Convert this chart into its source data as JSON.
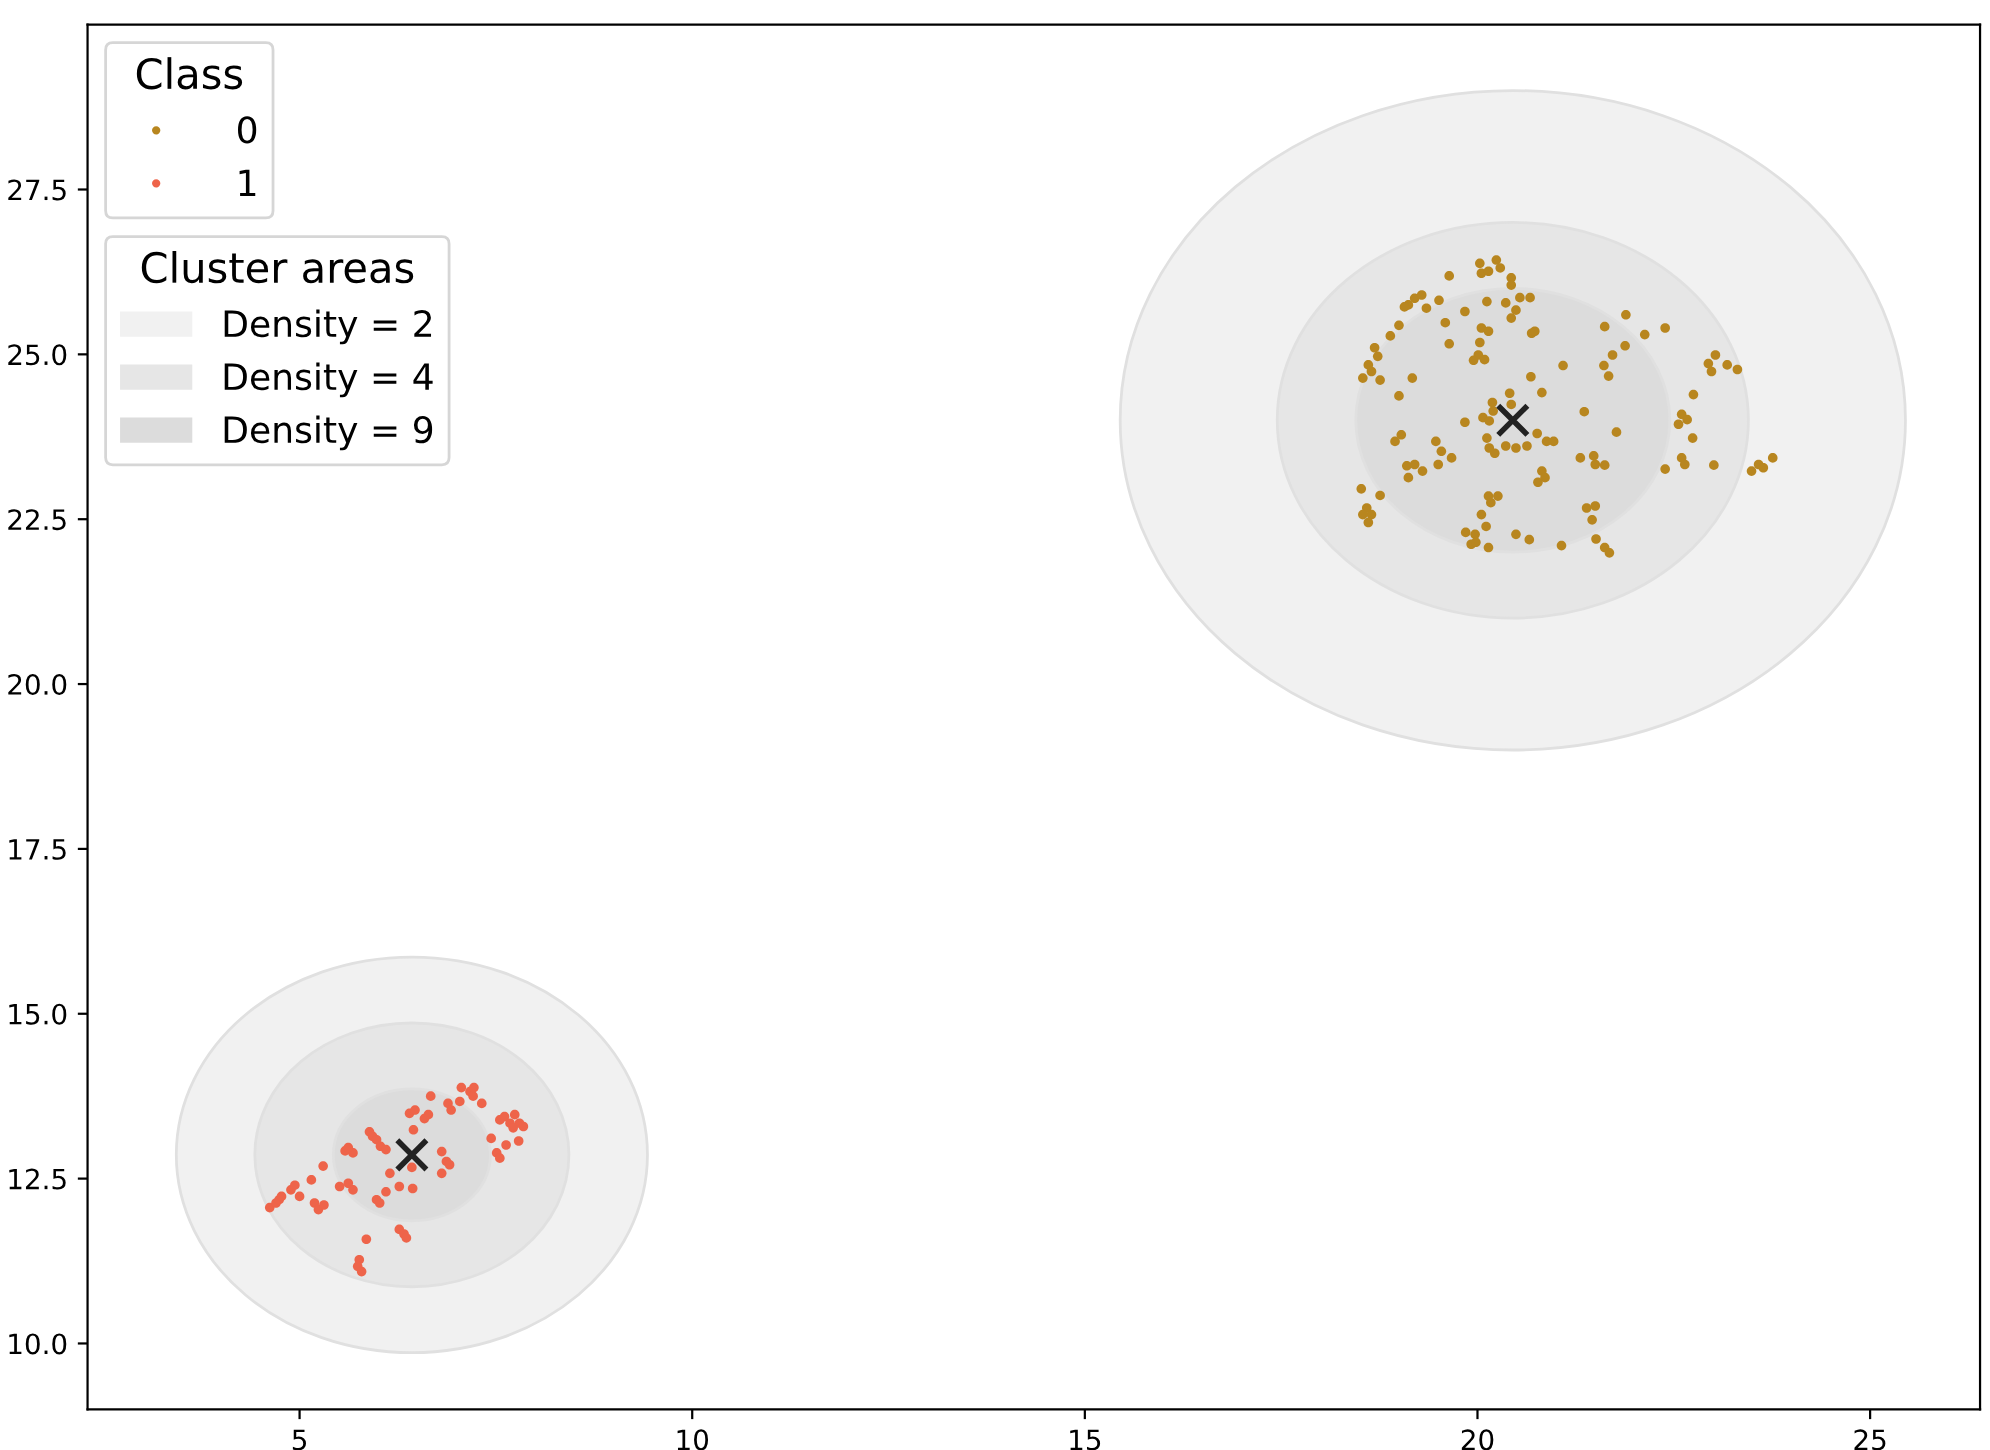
{
  "chart_data": {
    "type": "scatter",
    "legend_title": "Class",
    "annotations": [
      "Cluster areas",
      "Density = 2",
      "Density = 4",
      "Density = 9"
    ],
    "legend": "top left",
    "grid": false,
    "marker": "circle",
    "xlim": [
      2.3,
      26.4
    ],
    "ylim": [
      9.0,
      30.0
    ],
    "xticks": [
      5,
      10,
      15,
      20,
      25
    ],
    "yticks": [
      {
        "value": 10,
        "label": "10.0"
      },
      {
        "value": 12.5,
        "label": "12.5"
      },
      {
        "value": 15,
        "label": "15.0"
      },
      {
        "value": 17.5,
        "label": "17.5"
      },
      {
        "value": 20,
        "label": "20.0"
      },
      {
        "value": 22.5,
        "label": "22.5"
      },
      {
        "value": 25,
        "label": "25.0"
      },
      {
        "value": 27.5,
        "label": "27.5"
      }
    ],
    "series": [
      {
        "name": "0",
        "color": "#b8861f",
        "x": [
          20.03,
          20.24,
          20.05,
          20.14,
          20.29,
          20.43,
          20.43,
          19.64,
          19.12,
          19.2,
          19.29,
          19.35,
          19.51,
          19.07,
          19.84,
          20.12,
          20.36,
          20.43,
          20.49,
          20.54,
          20.67,
          19.59,
          20.05,
          20.14,
          20.69,
          20.73,
          19.64,
          20.03,
          20.01,
          19.95,
          20.09,
          19.0,
          18.89,
          18.69,
          18.73,
          18.61,
          18.65,
          18.54,
          18.76,
          19.17,
          19.0,
          20.41,
          20.68,
          20.82,
          21.09,
          20.19,
          20.2,
          20.43,
          20.07,
          19.84,
          20.15,
          21.62,
          21.89,
          21.88,
          21.72,
          21.61,
          21.67,
          22.13,
          22.39,
          23.03,
          22.94,
          23.18,
          23.31,
          22.98,
          22.75,
          22.6,
          22.67,
          22.56,
          22.74,
          21.36,
          21.77,
          20.76,
          20.88,
          20.97,
          18.95,
          19.03,
          19.47,
          19.54,
          19.67,
          20.12,
          20.15,
          20.22,
          20.36,
          20.49,
          20.63,
          19.1,
          19.2,
          19.3,
          19.12,
          19.5,
          20.82,
          20.86,
          20.77,
          21.31,
          21.48,
          21.5,
          21.62,
          22.39,
          22.6,
          22.64,
          23.01,
          23.49,
          23.58,
          23.64,
          23.76,
          18.52,
          18.76,
          18.59,
          18.65,
          18.54,
          18.61,
          20.14,
          20.26,
          20.17,
          20.05,
          20.11,
          19.85,
          19.97,
          19.92,
          19.98,
          20.14,
          20.49,
          20.66,
          21.07,
          21.39,
          21.5,
          21.46,
          21.51,
          21.62,
          21.68
        ],
        "values": [
          26.38,
          26.43,
          26.23,
          26.26,
          26.31,
          26.16,
          26.05,
          26.19,
          25.75,
          25.85,
          25.9,
          25.7,
          25.82,
          25.72,
          25.65,
          25.8,
          25.78,
          25.55,
          25.67,
          25.86,
          25.86,
          25.48,
          25.4,
          25.35,
          25.32,
          25.35,
          25.16,
          25.18,
          24.99,
          24.91,
          24.92,
          25.44,
          25.28,
          25.1,
          24.97,
          24.84,
          24.74,
          24.64,
          24.61,
          24.64,
          24.37,
          24.41,
          24.66,
          24.42,
          24.83,
          24.27,
          24.14,
          24.24,
          24.04,
          23.97,
          23.99,
          25.42,
          25.6,
          25.13,
          24.99,
          24.83,
          24.67,
          25.3,
          25.4,
          24.99,
          24.86,
          24.84,
          24.77,
          24.74,
          24.39,
          24.09,
          24.01,
          23.94,
          23.73,
          24.13,
          23.82,
          23.8,
          23.68,
          23.68,
          23.68,
          23.78,
          23.68,
          23.53,
          23.43,
          23.73,
          23.58,
          23.5,
          23.61,
          23.58,
          23.61,
          23.31,
          23.33,
          23.23,
          23.13,
          23.33,
          23.23,
          23.13,
          23.06,
          23.43,
          23.46,
          23.33,
          23.32,
          23.26,
          23.43,
          23.33,
          23.32,
          23.23,
          23.33,
          23.28,
          23.43,
          22.96,
          22.86,
          22.67,
          22.57,
          22.57,
          22.45,
          22.85,
          22.85,
          22.75,
          22.57,
          22.39,
          22.3,
          22.27,
          22.12,
          22.15,
          22.07,
          22.27,
          22.19,
          22.1,
          22.67,
          22.7,
          22.49,
          22.2,
          22.07,
          21.99
        ]
      },
      {
        "name": "1",
        "color": "#ee644a",
        "x": [
          4.62,
          4.7,
          4.74,
          4.77,
          4.89,
          4.94,
          5.0,
          5.15,
          5.19,
          5.24,
          5.31,
          5.3,
          5.51,
          5.62,
          5.68,
          5.58,
          5.68,
          5.62,
          5.89,
          5.93,
          5.98,
          6.03,
          6.1,
          5.98,
          6.02,
          6.1,
          6.15,
          6.27,
          6.44,
          6.43,
          6.45,
          6.4,
          6.47,
          6.59,
          6.64,
          6.67,
          6.89,
          6.93,
          7.04,
          7.06,
          7.17,
          7.21,
          7.32,
          7.22,
          6.81,
          6.87,
          6.91,
          6.81,
          6.27,
          6.33,
          6.36,
          5.85,
          5.76,
          5.74,
          5.79,
          7.44,
          7.51,
          7.55,
          7.63,
          7.79,
          7.55,
          7.61,
          7.68,
          7.74,
          7.8,
          7.85,
          7.72
        ],
        "values": [
          12.06,
          12.13,
          12.18,
          12.23,
          12.33,
          12.4,
          12.23,
          12.48,
          12.13,
          12.03,
          12.1,
          12.69,
          12.38,
          12.43,
          12.33,
          12.92,
          12.89,
          12.97,
          13.21,
          13.14,
          13.09,
          12.99,
          12.94,
          12.18,
          12.13,
          12.3,
          12.58,
          12.38,
          12.35,
          12.67,
          13.24,
          13.49,
          13.54,
          13.41,
          13.47,
          13.75,
          13.64,
          13.54,
          13.67,
          13.88,
          13.82,
          13.75,
          13.64,
          13.88,
          12.91,
          12.76,
          12.71,
          12.58,
          11.73,
          11.66,
          11.6,
          11.58,
          11.27,
          11.17,
          11.09,
          13.11,
          12.89,
          12.81,
          13.01,
          13.07,
          13.39,
          13.44,
          13.34,
          13.47,
          13.34,
          13.29,
          13.27
        ]
      },
      {
        "color": "#222222",
        "marker": "cross",
        "x": [
          20.45,
          6.43
        ],
        "values": [
          24.0,
          12.86
        ]
      }
    ]
  }
}
